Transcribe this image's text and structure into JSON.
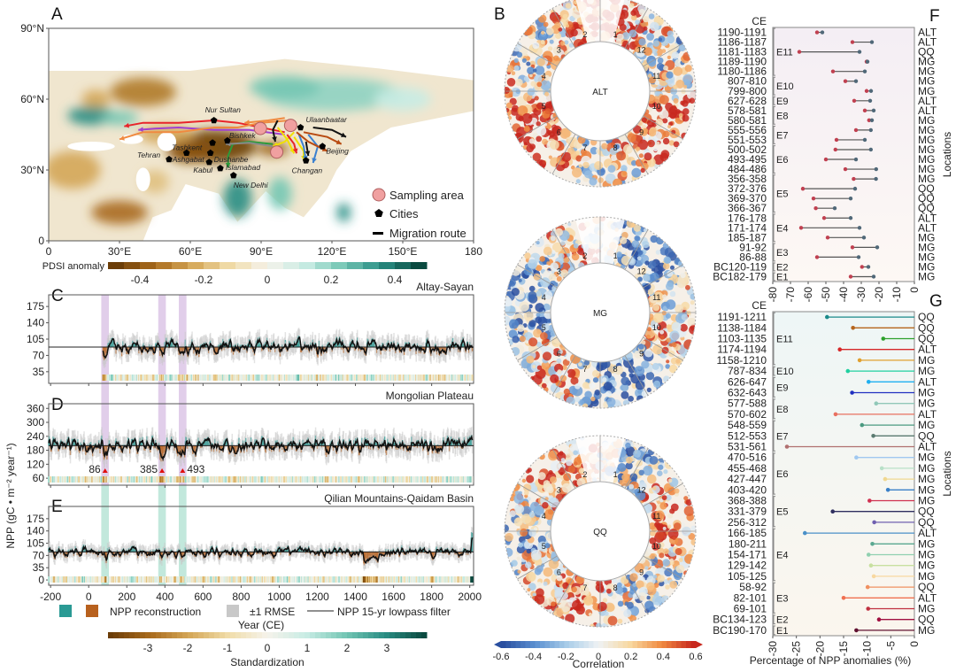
{
  "panels": {
    "A": "A",
    "B": "B",
    "C": "C",
    "D": "D",
    "E": "E",
    "F": "F",
    "G": "G"
  },
  "map": {
    "lat_ticks": [
      "0",
      "30°N",
      "60°N",
      "90°N"
    ],
    "lon_ticks": [
      "0",
      "30°E",
      "60°E",
      "90°E",
      "120°E",
      "150°E",
      "180"
    ],
    "colorbar_title": "PDSI anomaly",
    "colorbar_ticks": [
      "-0.4",
      "-0.2",
      "0",
      "0.2",
      "0.4"
    ],
    "legend": {
      "sampling": "Sampling area",
      "cities": "Cities",
      "route": "Migration route"
    },
    "cities": [
      {
        "name": "Nur Sultan",
        "lon": 70,
        "lat": 51,
        "dx": -10,
        "dy": -9
      },
      {
        "name": "Ulaanbaatar",
        "lon": 106.7,
        "lat": 48,
        "dx": 6,
        "dy": -6
      },
      {
        "name": "Bishkek",
        "lon": 75.7,
        "lat": 42.4,
        "dx": 2,
        "dy": -3
      },
      {
        "name": "Tashkent",
        "lon": 69.4,
        "lat": 41.5,
        "dx": -46,
        "dy": 8
      },
      {
        "name": "Ashgabat",
        "lon": 58.4,
        "lat": 37.2,
        "dx": -16,
        "dy": 10
      },
      {
        "name": "Tehran",
        "lon": 51,
        "lat": 34.5,
        "dx": -36,
        "dy": -2
      },
      {
        "name": "Dushanbe",
        "lon": 68.5,
        "lat": 37.2,
        "dx": 4,
        "dy": 10
      },
      {
        "name": "Kabul",
        "lon": 68,
        "lat": 33.3,
        "dx": -18,
        "dy": 12
      },
      {
        "name": "Islamabad",
        "lon": 72.7,
        "lat": 30.7,
        "dx": 6,
        "dy": 2
      },
      {
        "name": "New Delhi",
        "lon": 78.3,
        "lat": 27.7,
        "dx": 0,
        "dy": 14
      },
      {
        "name": "Changan",
        "lon": 109,
        "lat": 34,
        "dx": -16,
        "dy": 14
      },
      {
        "name": "Beijing",
        "lon": 116,
        "lat": 40,
        "dx": 4,
        "dy": 8
      }
    ],
    "sampling_areas": [
      {
        "lon": 89.7,
        "lat": 47.6
      },
      {
        "lon": 102.5,
        "lat": 48.9
      },
      {
        "lon": 96.6,
        "lat": 37.6
      }
    ],
    "routes": [
      {
        "color": "#e8242a",
        "pts": [
          [
            100,
            46
          ],
          [
            80,
            50
          ],
          [
            70,
            51
          ],
          [
            55,
            50
          ],
          [
            40,
            50
          ],
          [
            32,
            48.5
          ]
        ]
      },
      {
        "color": "#a040d0",
        "pts": [
          [
            100,
            45
          ],
          [
            85,
            47
          ],
          [
            70,
            47
          ],
          [
            55,
            48
          ],
          [
            45,
            47.5
          ],
          [
            38,
            47
          ]
        ]
      },
      {
        "color": "#f08a40",
        "pts": [
          [
            102,
            51
          ],
          [
            90,
            50
          ],
          [
            80,
            48
          ],
          [
            70,
            48
          ],
          [
            55,
            46
          ],
          [
            40,
            46
          ],
          [
            30,
            43
          ]
        ]
      },
      {
        "color": "#f08a40",
        "pts": [
          [
            100,
            52
          ],
          [
            93,
            51
          ],
          [
            83,
            50
          ]
        ]
      },
      {
        "color": "#2a9a3a",
        "pts": [
          [
            95,
            41
          ],
          [
            85,
            42
          ],
          [
            78,
            41
          ],
          [
            76,
            36
          ],
          [
            76,
            31
          ]
        ]
      },
      {
        "color": "#8a8a8a",
        "pts": [
          [
            95,
            40
          ],
          [
            85,
            41.5
          ],
          [
            75,
            41
          ]
        ]
      },
      {
        "color": "#f0e000",
        "pts": [
          [
            97,
            48
          ],
          [
            101,
            43
          ],
          [
            104,
            37
          ]
        ]
      },
      {
        "color": "#f0e000",
        "pts": [
          [
            104,
            46
          ],
          [
            100,
            42
          ],
          [
            95,
            40
          ]
        ]
      },
      {
        "color": "#f0e000",
        "pts": [
          [
            104,
            44
          ],
          [
            108,
            38
          ],
          [
            108,
            34
          ]
        ]
      },
      {
        "color": "#3a80d0",
        "pts": [
          [
            106,
            45
          ],
          [
            108,
            40
          ],
          [
            109,
            34
          ]
        ]
      },
      {
        "color": "#3a80d0",
        "pts": [
          [
            110,
            45
          ],
          [
            114,
            40
          ],
          [
            112,
            33
          ]
        ]
      },
      {
        "color": "#b84a10",
        "pts": [
          [
            105,
            46
          ],
          [
            110,
            42
          ],
          [
            118,
            38
          ]
        ]
      },
      {
        "color": "#b84a10",
        "pts": [
          [
            108,
            46
          ],
          [
            118,
            44
          ],
          [
            124,
            41
          ]
        ]
      },
      {
        "color": "#111111",
        "pts": [
          [
            112,
            48
          ],
          [
            120,
            47
          ],
          [
            126,
            44
          ]
        ]
      },
      {
        "color": "#111111",
        "pts": [
          [
            97,
            51
          ],
          [
            95,
            47
          ],
          [
            96,
            42
          ]
        ]
      },
      {
        "color": "#e8242a",
        "pts": [
          [
            101,
            45
          ],
          [
            104,
            41
          ],
          [
            105,
            37
          ]
        ]
      },
      {
        "color": "#111111",
        "pts": [
          [
            109,
            42
          ],
          [
            110,
            36
          ]
        ]
      }
    ]
  },
  "rings": {
    "labels": [
      "ALT",
      "MG",
      "QQ"
    ],
    "sectors": [
      "1",
      "2",
      "3",
      "4",
      "5",
      "6",
      "7",
      "8",
      "9",
      "10",
      "11",
      "12"
    ],
    "colorbar_title": "Correlation",
    "colorbar_ticks": [
      "-0.6",
      "-0.4",
      "-0.2",
      "0",
      "0.2",
      "0.4",
      "0.6"
    ]
  },
  "timeseries": {
    "ylabel": "NPP (gC • m⁻² year⁻¹)",
    "xlabel": "Year (CE)",
    "x_ticks": [
      "-200",
      "0",
      "200",
      "400",
      "600",
      "800",
      "1000",
      "1200",
      "1400",
      "1600",
      "1800",
      "2000"
    ],
    "legend": {
      "recon": "NPP reconstruction",
      "rmse": "±1 RMSE",
      "lowpass": "NPP 15-yr lowpass filter"
    },
    "colorbar_title": "Standardization",
    "colorbar_ticks": [
      "-3",
      "-2",
      "-1",
      "0",
      "1",
      "2",
      "3"
    ],
    "highlight_years": [
      86,
      385,
      493
    ],
    "markers": [
      "86",
      "385",
      "493"
    ],
    "colors": {
      "positive": "#2a9a94",
      "negative": "#b8611e",
      "rmse": "#c8c8c8",
      "band_cd": "#c9a6d8",
      "band_e": "#8fd6c0"
    }
  },
  "chart_data": [
    {
      "type": "line",
      "panel": "C",
      "title": "Altay-Sayan",
      "xlim": [
        -210,
        2020
      ],
      "ylim": [
        10,
        200
      ],
      "y_ticks": [
        "35",
        "70",
        "105",
        "140",
        "175"
      ],
      "baseline": 88,
      "start_year": 75,
      "amplitude": 14
    },
    {
      "type": "line",
      "panel": "D",
      "title": "Mongolian Plateau",
      "xlim": [
        -210,
        2020
      ],
      "ylim": [
        30,
        380
      ],
      "y_ticks": [
        "60",
        "120",
        "180",
        "240",
        "300",
        "360"
      ],
      "baseline": 200,
      "start_year": -210,
      "amplitude": 30
    },
    {
      "type": "line",
      "panel": "E",
      "title": "Qilian Mountains-Qaidam Basin",
      "xlim": [
        -210,
        2020
      ],
      "ylim": [
        -15,
        210
      ],
      "y_ticks": [
        "0",
        "35",
        "70",
        "105",
        "140",
        "175"
      ],
      "baseline": 80,
      "start_year": -210,
      "amplitude": 13
    },
    {
      "type": "dumbbell",
      "panel": "F",
      "xlim": [
        -80,
        0
      ],
      "x_ticks": [
        "-80",
        "-70",
        "-60",
        "-50",
        "-40",
        "-30",
        "-20",
        "-10",
        "0"
      ],
      "header": "CE",
      "right_label": "Locations",
      "rows": [
        {
          "period": "1190-1191",
          "loc": "ALT",
          "min": -55,
          "max": -52
        },
        {
          "period": "1186-1187",
          "loc": "ALT",
          "min": -35,
          "max": -24
        },
        {
          "period": "1181-1183",
          "loc": "QQ",
          "min": -65,
          "max": -31
        },
        {
          "period": "1189-1190",
          "loc": "MG",
          "min": -27,
          "max": -26.5
        },
        {
          "period": "1180-1186",
          "loc": "MG",
          "min": -46,
          "max": -28
        },
        {
          "period": "807-810",
          "loc": "MG",
          "min": -39,
          "max": -33
        },
        {
          "period": "799-800",
          "loc": "MG",
          "min": -27,
          "max": -24.5
        },
        {
          "period": "627-628",
          "loc": "ALT",
          "min": -34,
          "max": -25
        },
        {
          "period": "578-581",
          "loc": "ALT",
          "min": -28,
          "max": -23
        },
        {
          "period": "580-581",
          "loc": "MG",
          "min": -25.6,
          "max": -24
        },
        {
          "period": "555-556",
          "loc": "MG",
          "min": -33,
          "max": -24.6
        },
        {
          "period": "551-553",
          "loc": "MG",
          "min": -44,
          "max": -28
        },
        {
          "period": "500-502",
          "loc": "MG",
          "min": -44.6,
          "max": -24.6
        },
        {
          "period": "493-495",
          "loc": "MG",
          "min": -50,
          "max": -33
        },
        {
          "period": "484-486",
          "loc": "MG",
          "min": -39,
          "max": -21.6
        },
        {
          "period": "356-358",
          "loc": "MG",
          "min": -34.3,
          "max": -21.7
        },
        {
          "period": "372-376",
          "loc": "QQ",
          "min": -63,
          "max": -33.5
        },
        {
          "period": "369-370",
          "loc": "QQ",
          "min": -57,
          "max": -36
        },
        {
          "period": "366-367",
          "loc": "QQ",
          "min": -55.7,
          "max": -45
        },
        {
          "period": "176-178",
          "loc": "ALT",
          "min": -51,
          "max": -36
        },
        {
          "period": "171-174",
          "loc": "ALT",
          "min": -64,
          "max": -31
        },
        {
          "period": "185-187",
          "loc": "MG",
          "min": -49,
          "max": -28.5
        },
        {
          "period": "91-92",
          "loc": "MG",
          "min": -35,
          "max": -21
        },
        {
          "period": "86-88",
          "loc": "MG",
          "min": -55,
          "max": -31.5
        },
        {
          "period": "BC120-119",
          "loc": "MG",
          "min": -29.6,
          "max": -26
        },
        {
          "period": "BC182-179",
          "loc": "MG",
          "min": -36,
          "max": -23
        }
      ],
      "events": [
        {
          "label": "E11",
          "from": 0,
          "to": 4
        },
        {
          "label": "E10",
          "from": 5,
          "to": 6
        },
        {
          "label": "E9",
          "from": 7,
          "to": 7
        },
        {
          "label": "E8",
          "from": 8,
          "to": 9
        },
        {
          "label": "E7",
          "from": 10,
          "to": 11
        },
        {
          "label": "E6",
          "from": 12,
          "to": 14
        },
        {
          "label": "E5",
          "from": 15,
          "to": 18
        },
        {
          "label": "E4",
          "from": 19,
          "to": 21
        },
        {
          "label": "E3",
          "from": 22,
          "to": 23
        },
        {
          "label": "E2",
          "from": 24,
          "to": 24
        },
        {
          "label": "E1",
          "from": 25,
          "to": 25
        }
      ]
    },
    {
      "type": "lollipop",
      "panel": "G",
      "xlim": [
        -30,
        0
      ],
      "x_ticks": [
        "-30",
        "-25",
        "-20",
        "-15",
        "-10",
        "-5",
        "0"
      ],
      "header": "CE",
      "xlabel": "Percentage of NPP anomalies (%)",
      "right_label": "Locations",
      "rows": [
        {
          "period": "1191-1211",
          "loc": "QQ",
          "value": -18.5,
          "color": "#1a8a8a"
        },
        {
          "period": "1138-1184",
          "loc": "QQ",
          "value": -13,
          "color": "#b5651d"
        },
        {
          "period": "1103-1135",
          "loc": "QQ",
          "value": -6.6,
          "color": "#2ca02c"
        },
        {
          "period": "1174-1194",
          "loc": "ALT",
          "value": -15.8,
          "color": "#d62728"
        },
        {
          "period": "1158-1210",
          "loc": "MG",
          "value": -11.6,
          "color": "#e0a030"
        },
        {
          "period": "787-834",
          "loc": "MG",
          "value": -14.1,
          "color": "#20d0a0"
        },
        {
          "period": "626-647",
          "loc": "ALT",
          "value": -9.7,
          "color": "#20b0f0"
        },
        {
          "period": "632-643",
          "loc": "MG",
          "value": -13.2,
          "color": "#2030c0"
        },
        {
          "period": "577-588",
          "loc": "MG",
          "value": -8.1,
          "color": "#90c8b8"
        },
        {
          "period": "570-602",
          "loc": "ALT",
          "value": -16.7,
          "color": "#e87060"
        },
        {
          "period": "548-559",
          "loc": "MG",
          "value": -11.1,
          "color": "#4a9a80"
        },
        {
          "period": "512-553",
          "loc": "QQ",
          "value": -8.7,
          "color": "#5a7a70"
        },
        {
          "period": "531-561",
          "loc": "ALT",
          "value": -27,
          "color": "#b07070"
        },
        {
          "period": "470-516",
          "loc": "MG",
          "value": -12.3,
          "color": "#a0c8f0"
        },
        {
          "period": "455-468",
          "loc": "MG",
          "value": -6.9,
          "color": "#b8e0c8"
        },
        {
          "period": "427-447",
          "loc": "MG",
          "value": -6.2,
          "color": "#f0d890"
        },
        {
          "period": "403-420",
          "loc": "MG",
          "value": -5.6,
          "color": "#3a80c8"
        },
        {
          "period": "368-388",
          "loc": "MG",
          "value": -9.5,
          "color": "#d03050"
        },
        {
          "period": "331-379",
          "loc": "QQ",
          "value": -17.3,
          "color": "#303060"
        },
        {
          "period": "256-312",
          "loc": "QQ",
          "value": -8.5,
          "color": "#7060b0"
        },
        {
          "period": "166-185",
          "loc": "ALT",
          "value": -23.2,
          "color": "#4a90c8"
        },
        {
          "period": "180-211",
          "loc": "MG",
          "value": -8.9,
          "color": "#5aa890"
        },
        {
          "period": "154-171",
          "loc": "MG",
          "value": -9.7,
          "color": "#90d0b0"
        },
        {
          "period": "129-142",
          "loc": "MG",
          "value": -9.2,
          "color": "#c8e0a0"
        },
        {
          "period": "105-125",
          "loc": "MG",
          "value": -8.6,
          "color": "#f8d8a0"
        },
        {
          "period": "58-92",
          "loc": "QQ",
          "value": -9.9,
          "color": "#f09060"
        },
        {
          "period": "82-101",
          "loc": "ALT",
          "value": -15,
          "color": "#f07050"
        },
        {
          "period": "69-101",
          "loc": "MG",
          "value": -9.8,
          "color": "#c03040"
        },
        {
          "period": "BC134-123",
          "loc": "QQ",
          "value": -7.5,
          "color": "#a01040"
        },
        {
          "period": "BC190-170",
          "loc": "MG",
          "value": -12.3,
          "color": "#601030"
        }
      ],
      "events": [
        {
          "label": "E11",
          "from": 0,
          "to": 4
        },
        {
          "label": "E10",
          "from": 5,
          "to": 5
        },
        {
          "label": "E9",
          "from": 6,
          "to": 7
        },
        {
          "label": "E8",
          "from": 8,
          "to": 9
        },
        {
          "label": "E7",
          "from": 10,
          "to": 12
        },
        {
          "label": "E6",
          "from": 13,
          "to": 16
        },
        {
          "label": "E5",
          "from": 17,
          "to": 19
        },
        {
          "label": "E4",
          "from": 20,
          "to": 24
        },
        {
          "label": "E3",
          "from": 25,
          "to": 27
        },
        {
          "label": "E2",
          "from": 28,
          "to": 28
        },
        {
          "label": "E1",
          "from": 29,
          "to": 29
        }
      ]
    }
  ]
}
